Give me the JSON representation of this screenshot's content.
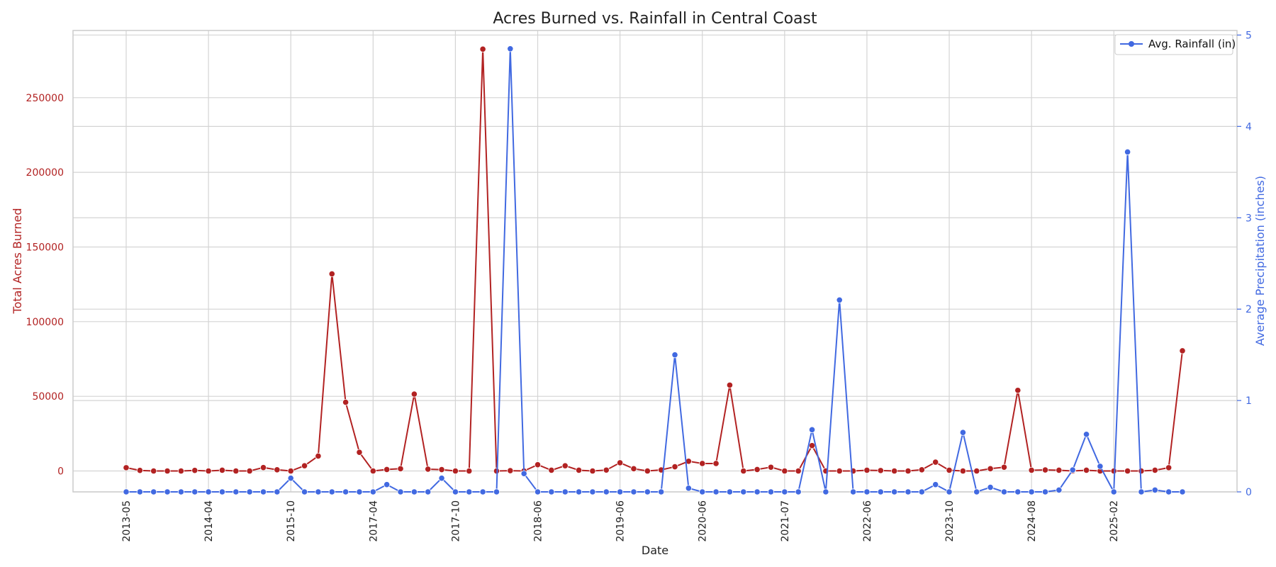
{
  "chart_data": {
    "type": "line",
    "title": "Acres Burned vs. Rainfall in Central Coast",
    "xlabel": "Date",
    "ylabel_left": "Total Acres Burned",
    "ylabel_right": "Average Precipitation (inches)",
    "left_ylim": [
      -14000,
      295000
    ],
    "right_ylim": [
      0,
      5.05
    ],
    "left_ticks": [
      0,
      50000,
      100000,
      150000,
      200000,
      250000
    ],
    "right_ticks": [
      0,
      1,
      2,
      3,
      4,
      5
    ],
    "x_ticks": [
      {
        "i": 0,
        "label": "2013-05"
      },
      {
        "i": 6,
        "label": "2014-04"
      },
      {
        "i": 12,
        "label": "2015-10"
      },
      {
        "i": 18,
        "label": "2017-04"
      },
      {
        "i": 24,
        "label": "2017-10"
      },
      {
        "i": 30,
        "label": "2018-06"
      },
      {
        "i": 36,
        "label": "2019-06"
      },
      {
        "i": 42,
        "label": "2020-06"
      },
      {
        "i": 48,
        "label": "2021-07"
      },
      {
        "i": 54,
        "label": "2022-06"
      },
      {
        "i": 60,
        "label": "2023-10"
      },
      {
        "i": 66,
        "label": "2024-08"
      },
      {
        "i": 72,
        "label": "2025-02"
      }
    ],
    "grid": true,
    "legend_position": "top-right",
    "series": [
      {
        "name": "Acres Burned",
        "axis": "left",
        "color": "#b22222",
        "values": [
          2200,
          400,
          0,
          0,
          0,
          400,
          0,
          500,
          0,
          0,
          2300,
          800,
          0,
          3500,
          10000,
          132000,
          46000,
          12500,
          0,
          1000,
          1500,
          51500,
          1200,
          900,
          0,
          0,
          282500,
          0,
          200,
          0,
          4200,
          500,
          3500,
          500,
          0,
          600,
          5500,
          1500,
          0,
          700,
          2800,
          6500,
          5000,
          5000,
          57500,
          0,
          1000,
          2500,
          0,
          0,
          17000,
          0,
          0,
          0,
          500,
          300,
          0,
          0,
          800,
          5900,
          500,
          0,
          0,
          1500,
          2500,
          54000,
          500,
          700,
          500,
          0,
          500,
          0,
          0,
          0,
          0,
          500,
          2200,
          80500
        ]
      },
      {
        "name": "Avg. Rainfall (in)",
        "axis": "right",
        "color": "#4169e1",
        "values": [
          0,
          0,
          0,
          0,
          0,
          0,
          0,
          0,
          0,
          0,
          0,
          0,
          0.15,
          0,
          0,
          0,
          0,
          0,
          0,
          0.08,
          0,
          0,
          0,
          0.15,
          0,
          0,
          0,
          0,
          4.85,
          0.2,
          0,
          0,
          0,
          0,
          0,
          0,
          0,
          0,
          0,
          0,
          1.5,
          0.04,
          0,
          0,
          0,
          0,
          0,
          0,
          0,
          0,
          0.68,
          0,
          2.1,
          0,
          0,
          0,
          0,
          0,
          0,
          0.08,
          0,
          0.65,
          0,
          0.05,
          0,
          0,
          0,
          0,
          0.02,
          0.24,
          0.63,
          0.28,
          0,
          3.72,
          0,
          0.02,
          0,
          0
        ]
      }
    ]
  },
  "legend": {
    "label": "Avg. Rainfall (in)"
  }
}
